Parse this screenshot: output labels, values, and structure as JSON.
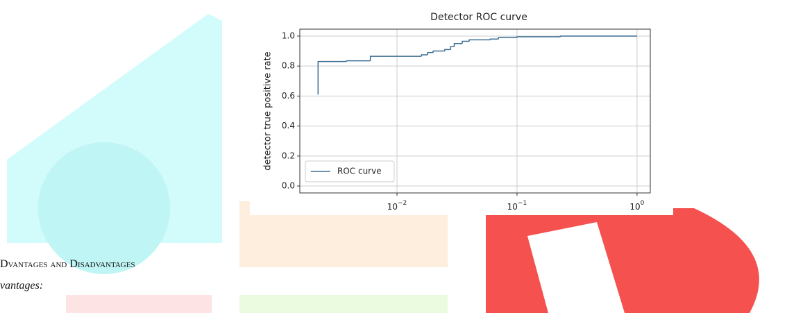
{
  "chart_data": {
    "type": "step",
    "title": "Detector ROC curve",
    "ylabel": "detector true positive rate",
    "xscale": "log",
    "grid": true,
    "legend": "lower left",
    "xlim": [
      0.00155,
      1.29
    ],
    "ylim": [
      -0.046,
      1.046
    ],
    "xticks": [
      {
        "value": 0.01,
        "label": "10",
        "exponent": "−2"
      },
      {
        "value": 0.1,
        "label": "10",
        "exponent": "−1"
      },
      {
        "value": 1,
        "label": "10",
        "exponent": "0"
      }
    ],
    "yticks": [
      {
        "value": 0,
        "label": "0.0"
      },
      0.2,
      0.4,
      0.6,
      0.8,
      {
        "value": 1,
        "label": "1.0"
      }
    ],
    "series": [
      {
        "name": "ROC curve",
        "color": "#3b6e91",
        "x": [
          0.0022,
          0.0022,
          0.0038,
          0.006,
          0.016,
          0.018,
          0.02,
          0.025,
          0.028,
          0.03,
          0.035,
          0.04,
          0.06,
          0.07,
          0.1,
          0.23,
          1.0
        ],
        "values": [
          0.61,
          0.83,
          0.835,
          0.865,
          0.875,
          0.89,
          0.9,
          0.91,
          0.93,
          0.95,
          0.965,
          0.975,
          0.98,
          0.99,
          0.995,
          1.0,
          1.0
        ]
      }
    ]
  },
  "heading": "Dvantages and Disadvantages",
  "subheading": "vantages:"
}
